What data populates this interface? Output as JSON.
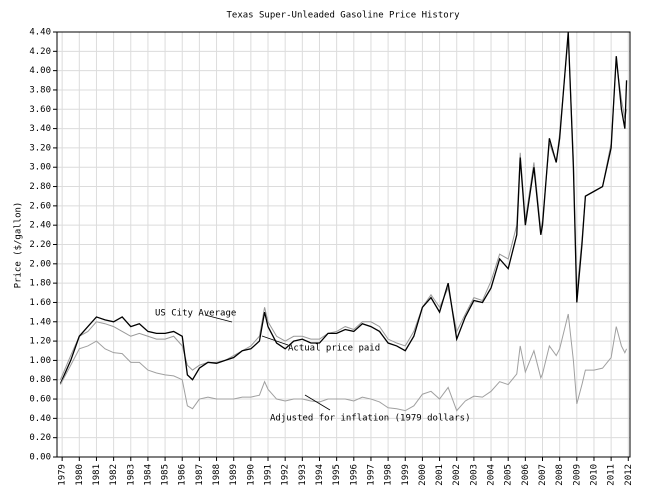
{
  "chart_data": {
    "type": "line",
    "title": "Texas Super-Unleaded Gasoline Price History",
    "y_label": "Price ($/gallon)",
    "x": [
      1978.9,
      1979.5,
      1980,
      1980.5,
      1981,
      1981.5,
      1982,
      1982.5,
      1983,
      1983.5,
      1984,
      1984.5,
      1985,
      1985.5,
      1986,
      1986.3,
      1986.6,
      1987,
      1987.5,
      1988,
      1988.5,
      1989,
      1989.5,
      1990,
      1990.5,
      1990.8,
      1991,
      1991.5,
      1992,
      1992.5,
      1993,
      1993.5,
      1994,
      1994.5,
      1995,
      1995.5,
      1996,
      1996.5,
      1997,
      1997.5,
      1998,
      1998.5,
      1999,
      1999.5,
      2000,
      2000.5,
      2001,
      2001.5,
      2002,
      2002.5,
      2003,
      2003.5,
      2004,
      2004.5,
      2005,
      2005.5,
      2005.7,
      2006,
      2006.5,
      2006.9,
      2007,
      2007.4,
      2007.8,
      2008,
      2008.5,
      2008.8,
      2009,
      2009.3,
      2009.5,
      2010,
      2010.5,
      2011,
      2011.3,
      2011.6,
      2011.8,
      2011.9
    ],
    "series": [
      {
        "name": "US City Average",
        "color": "#999999",
        "values": [
          0.8,
          1.05,
          1.25,
          1.3,
          1.4,
          1.38,
          1.35,
          1.3,
          1.25,
          1.28,
          1.25,
          1.22,
          1.22,
          1.25,
          1.15,
          0.95,
          0.9,
          0.95,
          0.98,
          0.98,
          1.0,
          1.05,
          1.1,
          1.15,
          1.25,
          1.55,
          1.4,
          1.25,
          1.2,
          1.25,
          1.25,
          1.22,
          1.22,
          1.28,
          1.3,
          1.35,
          1.32,
          1.4,
          1.4,
          1.35,
          1.22,
          1.18,
          1.15,
          1.3,
          1.55,
          1.68,
          1.55,
          1.75,
          1.3,
          1.48,
          1.65,
          1.62,
          1.82,
          2.1,
          2.05,
          2.4,
          3.15,
          2.45,
          3.05,
          2.35,
          2.45,
          3.25,
          3.05,
          3.35,
          4.35,
          3.1,
          1.7,
          2.25,
          2.7,
          2.75,
          2.8,
          3.25,
          4.1,
          3.7,
          3.5,
          3.6
        ]
      },
      {
        "name": "Actual price paid",
        "color": "#000000",
        "values": [
          0.76,
          1.0,
          1.25,
          1.35,
          1.45,
          1.42,
          1.4,
          1.45,
          1.35,
          1.38,
          1.3,
          1.28,
          1.28,
          1.3,
          1.25,
          0.85,
          0.8,
          0.92,
          0.98,
          0.97,
          1.0,
          1.03,
          1.1,
          1.12,
          1.2,
          1.5,
          1.35,
          1.18,
          1.12,
          1.2,
          1.22,
          1.18,
          1.18,
          1.28,
          1.28,
          1.32,
          1.3,
          1.38,
          1.35,
          1.3,
          1.18,
          1.15,
          1.1,
          1.25,
          1.55,
          1.65,
          1.5,
          1.8,
          1.22,
          1.45,
          1.62,
          1.6,
          1.75,
          2.05,
          1.95,
          2.3,
          3.1,
          2.4,
          3.0,
          2.3,
          2.4,
          3.3,
          3.05,
          3.3,
          4.4,
          3.0,
          1.6,
          2.2,
          2.7,
          2.75,
          2.8,
          3.2,
          4.15,
          3.6,
          3.4,
          3.9
        ]
      },
      {
        "name": "Adjusted for inflation (1979 dollars)",
        "color": "#a0a0a0",
        "values": [
          0.75,
          0.95,
          1.12,
          1.15,
          1.2,
          1.12,
          1.08,
          1.07,
          0.98,
          0.98,
          0.9,
          0.87,
          0.85,
          0.84,
          0.8,
          0.53,
          0.5,
          0.6,
          0.62,
          0.6,
          0.6,
          0.6,
          0.62,
          0.62,
          0.64,
          0.78,
          0.7,
          0.6,
          0.58,
          0.6,
          0.6,
          0.58,
          0.57,
          0.6,
          0.6,
          0.6,
          0.58,
          0.62,
          0.6,
          0.57,
          0.51,
          0.5,
          0.48,
          0.53,
          0.65,
          0.68,
          0.6,
          0.72,
          0.48,
          0.58,
          0.63,
          0.62,
          0.68,
          0.78,
          0.75,
          0.86,
          1.15,
          0.88,
          1.1,
          0.82,
          0.86,
          1.15,
          1.05,
          1.12,
          1.48,
          1.0,
          0.55,
          0.75,
          0.9,
          0.9,
          0.92,
          1.03,
          1.35,
          1.15,
          1.08,
          1.12
        ]
      }
    ],
    "xlim": [
      1978.7,
      2012.1
    ],
    "xticks": [
      1979,
      1980,
      1981,
      1982,
      1983,
      1984,
      1985,
      1986,
      1987,
      1988,
      1989,
      1990,
      1991,
      1992,
      1993,
      1994,
      1995,
      1996,
      1997,
      1998,
      1999,
      2000,
      2001,
      2002,
      2003,
      2004,
      2005,
      2006,
      2007,
      2008,
      2009,
      2010,
      2011,
      2012
    ],
    "ylim": [
      0,
      4.4
    ],
    "yticks": [
      {
        "value": 0,
        "label": "0.00"
      },
      {
        "value": 0.2,
        "label": "0.20"
      },
      {
        "value": 0.4,
        "label": "0.40"
      },
      {
        "value": 0.6,
        "label": "0.60"
      },
      {
        "value": 0.8,
        "label": "0.80"
      },
      {
        "value": 1,
        "label": "1.00"
      },
      {
        "value": 1.2,
        "label": "1.20"
      },
      {
        "value": 1.4,
        "label": "1.40"
      },
      {
        "value": 1.6,
        "label": "1.60"
      },
      {
        "value": 1.8,
        "label": "1.80"
      },
      {
        "value": 2,
        "label": "2.00"
      },
      {
        "value": 2.2,
        "label": "2.20"
      },
      {
        "value": 2.4,
        "label": "2.40"
      },
      {
        "value": 2.6,
        "label": "2.60"
      },
      {
        "value": 2.8,
        "label": "2.80"
      },
      {
        "value": 3,
        "label": "3.00"
      },
      {
        "value": 3.2,
        "label": "3.20"
      },
      {
        "value": 3.4,
        "label": "3.40"
      },
      {
        "value": 3.6,
        "label": "3.60"
      },
      {
        "value": 3.8,
        "label": "3.80"
      },
      {
        "value": 4,
        "label": "4.00"
      },
      {
        "value": 4.2,
        "label": "4.20"
      },
      {
        "value": 4.4,
        "label": "4.40"
      }
    ],
    "grid": true
  }
}
